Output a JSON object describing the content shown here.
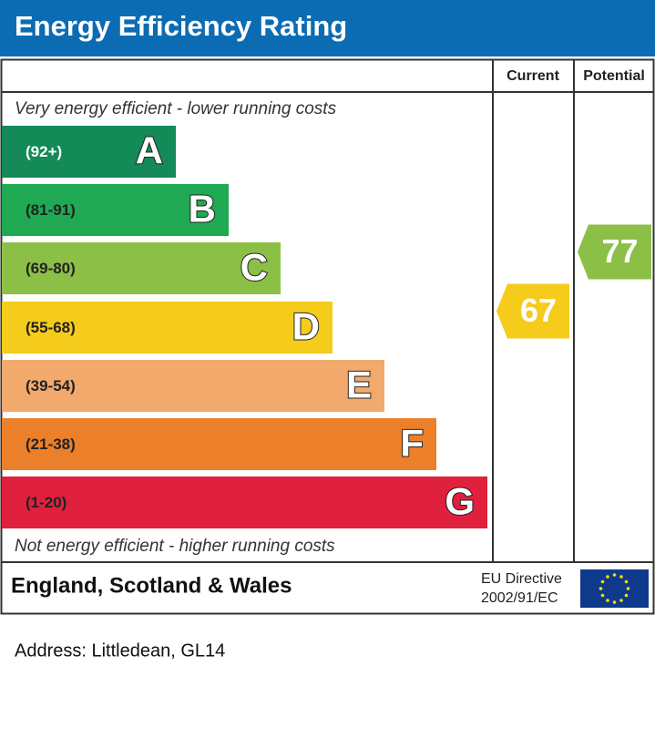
{
  "header": {
    "title": "Energy Efficiency Rating"
  },
  "columns": {
    "current": "Current",
    "potential": "Potential"
  },
  "top_note": "Very energy efficient - lower running costs",
  "bottom_note": "Not energy efficient - higher running costs",
  "bands": [
    {
      "range": "(92+)",
      "letter": "A",
      "color": "#138a57"
    },
    {
      "range": "(81-91)",
      "letter": "B",
      "color": "#1fa952"
    },
    {
      "range": "(69-80)",
      "letter": "C",
      "color": "#8cbf46"
    },
    {
      "range": "(55-68)",
      "letter": "D",
      "color": "#f5cb1c"
    },
    {
      "range": "(39-54)",
      "letter": "E",
      "color": "#f2a96c"
    },
    {
      "range": "(21-38)",
      "letter": "F",
      "color": "#ec7f29"
    },
    {
      "range": "(1-20)",
      "letter": "G",
      "color": "#e0213d"
    }
  ],
  "current": {
    "value": 67
  },
  "potential": {
    "value": 77
  },
  "footer": {
    "region": "England, Scotland & Wales",
    "directive_line1": "EU Directive",
    "directive_line2": "2002/91/EC"
  },
  "address": "Address: Littledean, GL14"
}
